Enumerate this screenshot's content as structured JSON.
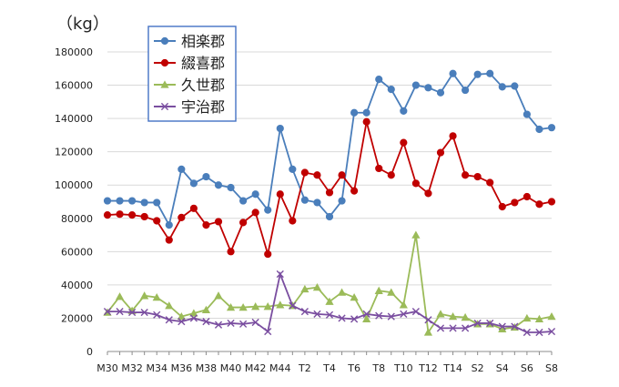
{
  "chart_data": {
    "type": "line",
    "ylabel": "（kg）",
    "ylim": [
      0,
      180000
    ],
    "yticks": [
      0,
      20000,
      40000,
      60000,
      80000,
      100000,
      120000,
      140000,
      160000,
      180000
    ],
    "grid": "horizontal",
    "legend": "top-left",
    "xtick_labels": [
      "M30",
      "M32",
      "M34",
      "M36",
      "M38",
      "M40",
      "M42",
      "M44",
      "T2",
      "T4",
      "T6",
      "T8",
      "T10",
      "T12",
      "T14",
      "S2",
      "S4",
      "S6",
      "S8"
    ],
    "x": [
      "M30",
      "M31",
      "M32",
      "M33",
      "M34",
      "M35",
      "M36",
      "M37",
      "M38",
      "M39",
      "M40",
      "M41",
      "M42",
      "M43",
      "M44",
      "M45",
      "T2",
      "T3",
      "T4",
      "T5",
      "T6",
      "T7",
      "T8",
      "T9",
      "T10",
      "T11",
      "T12",
      "T13",
      "T14",
      "T15",
      "S2",
      "S3",
      "S4",
      "S5",
      "S6",
      "S7",
      "S8"
    ],
    "series": [
      {
        "name": "相楽郡",
        "color": "#4a7ebb",
        "marker": "circle",
        "values": [
          90500,
          90500,
          90500,
          89500,
          89500,
          76000,
          109500,
          101000,
          105000,
          100000,
          98500,
          90500,
          94500,
          85000,
          134000,
          109500,
          91000,
          89500,
          81000,
          90500,
          143500,
          143500,
          163500,
          157500,
          144500,
          160000,
          158500,
          155500,
          167000,
          157000,
          166500,
          167000,
          159000,
          159500,
          142500,
          133500,
          134500
        ]
      },
      {
        "name": "綴喜郡",
        "color": "#c00000",
        "marker": "circle",
        "values": [
          82000,
          82500,
          82000,
          81000,
          78500,
          67000,
          80500,
          86000,
          76000,
          78000,
          60000,
          77500,
          83500,
          58500,
          94500,
          78500,
          107500,
          106000,
          95500,
          106000,
          96500,
          138000,
          110000,
          106000,
          125500,
          101000,
          95000,
          119500,
          129500,
          106000,
          105000,
          101500,
          87000,
          89500,
          93000,
          88500,
          90000
        ]
      },
      {
        "name": "久世郡",
        "color": "#9bbb59",
        "marker": "triangle",
        "values": [
          23500,
          33000,
          24500,
          33500,
          32500,
          27500,
          21000,
          23000,
          25000,
          33500,
          26500,
          26500,
          27000,
          27000,
          28000,
          27500,
          37500,
          38500,
          30000,
          35500,
          32500,
          19500,
          36500,
          35500,
          28000,
          70000,
          11500,
          22500,
          21000,
          20500,
          16500,
          16500,
          13500,
          14500,
          20000,
          19500,
          21000
        ]
      },
      {
        "name": "宇治郡",
        "color": "#7a4ea0",
        "marker": "x",
        "values": [
          24000,
          24000,
          23500,
          23500,
          22000,
          19000,
          18000,
          20000,
          18000,
          16000,
          17000,
          16500,
          17500,
          12000,
          46500,
          27500,
          24000,
          22500,
          22000,
          20000,
          19500,
          22500,
          21500,
          21000,
          22500,
          24000,
          19000,
          14000,
          14000,
          14000,
          17000,
          17000,
          15000,
          15000,
          11500,
          11500,
          12000
        ]
      }
    ]
  }
}
